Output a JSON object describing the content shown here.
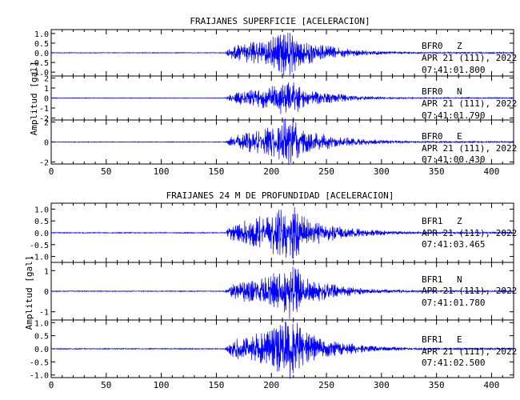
{
  "chart_data": [
    {
      "type": "line",
      "title": "FRAIJANES SUPERFICIE [ACELERACION]",
      "ylabel": "Amplitud [gal]",
      "xlim": [
        0,
        420
      ],
      "x_ticks": [
        "0",
        "50",
        "100",
        "150",
        "200",
        "250",
        "300",
        "350",
        "400"
      ],
      "grid": false,
      "series_color": "#0000ff",
      "event": {
        "onset": 158,
        "peak": 215,
        "peak_amp": 1.0,
        "coda_end": 420
      },
      "panels": [
        {
          "station": "BFR0",
          "component": "Z",
          "date": "APR 21 (111), 2022",
          "time": "07:41:01.800",
          "ylim": [
            -1.2,
            1.2
          ],
          "yticks": [
            1.0,
            0.5,
            0.0,
            -0.5,
            -1.0
          ],
          "ytick_labels": [
            "1.0",
            "0.5",
            "0.0",
            "-0.5",
            "-1.0"
          ],
          "peak_amp": 1.0
        },
        {
          "station": "BFR0",
          "component": "N",
          "date": "APR 21 (111), 2022",
          "time": "07:41:01.790",
          "ylim": [
            -2.2,
            2.2
          ],
          "yticks": [
            2,
            1,
            0,
            -1,
            -2
          ],
          "ytick_labels": [
            "2",
            "1",
            "0",
            "-1",
            "-2"
          ],
          "peak_amp": 1.5
        },
        {
          "station": "BFR0",
          "component": "E",
          "date": "APR 21 (111), 2022",
          "time": "07:41:00.430",
          "ylim": [
            -2.2,
            2.2
          ],
          "yticks": [
            2,
            0,
            -2
          ],
          "ytick_labels": [
            "2",
            "0",
            "-2"
          ],
          "peak_amp": 2.0
        }
      ]
    },
    {
      "type": "line",
      "title": "FRAIJANES 24 M DE PROFUNDIDAD [ACELERACION]",
      "ylabel": "Amplitud [gal]",
      "xlim": [
        0,
        420
      ],
      "x_ticks": [
        "0",
        "50",
        "100",
        "150",
        "200",
        "250",
        "300",
        "350",
        "400"
      ],
      "grid": false,
      "series_color": "#0000ff",
      "event": {
        "onset": 158,
        "peak": 215,
        "peak_amp": 1.0,
        "coda_end": 420
      },
      "panels": [
        {
          "station": "BFR1",
          "component": "Z",
          "date": "APR 21 (111), 2022",
          "time": "07:41:03.465",
          "ylim": [
            -1.25,
            1.25
          ],
          "yticks": [
            1.0,
            0.5,
            0.0,
            -0.5,
            -1.0
          ],
          "ytick_labels": [
            "1.0",
            "0.5",
            "0.0",
            "-0.5",
            "-1.0"
          ],
          "peak_amp": 1.05
        },
        {
          "station": "BFR1",
          "component": "N",
          "date": "APR 21 (111), 2022",
          "time": "07:41:01.780",
          "ylim": [
            -1.4,
            1.4
          ],
          "yticks": [
            1,
            0,
            -1
          ],
          "ytick_labels": [
            "1",
            "0",
            "-1"
          ],
          "peak_amp": 1.1
        },
        {
          "station": "BFR1",
          "component": "E",
          "date": "APR 21 (111), 2022",
          "time": "07:41:02.500",
          "ylim": [
            -1.1,
            1.1
          ],
          "yticks": [
            1.0,
            0.5,
            0.0,
            -0.5,
            -1.0
          ],
          "ytick_labels": [
            "1.0",
            "0.5",
            "0.0",
            "-0.5",
            "-1.0"
          ],
          "peak_amp": 1.0
        }
      ]
    }
  ]
}
